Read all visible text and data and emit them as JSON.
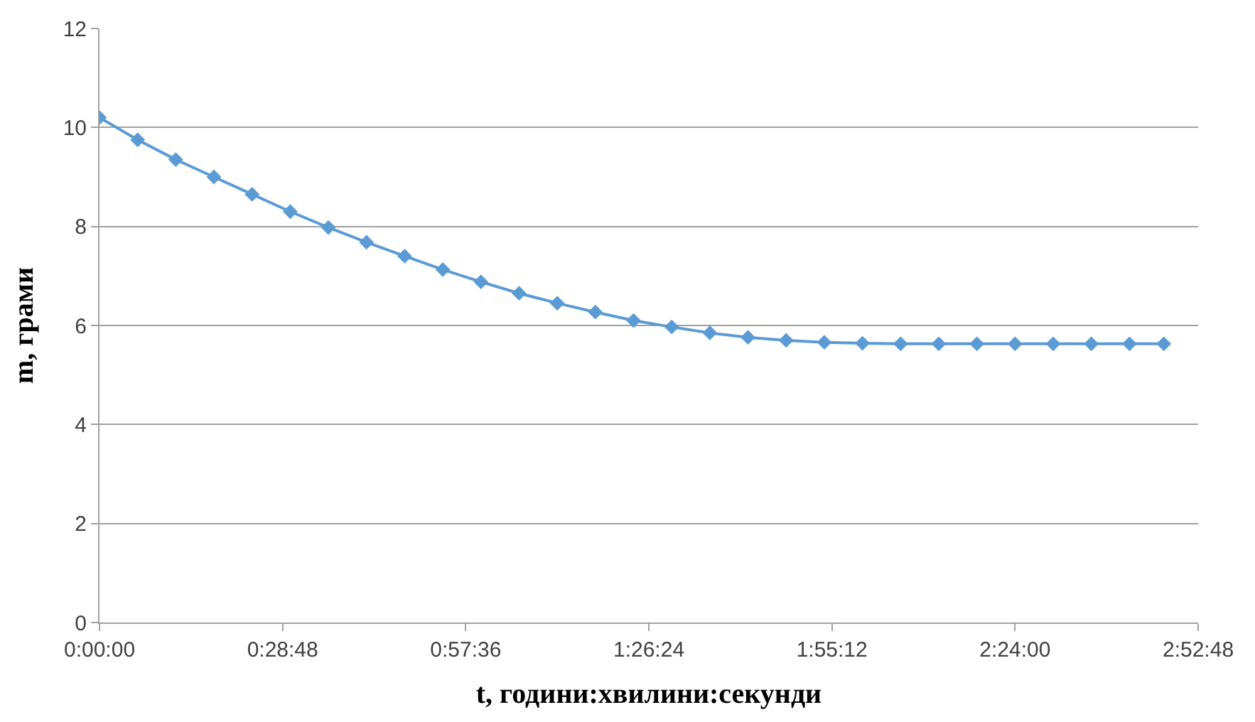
{
  "chart_data": {
    "type": "line",
    "xlabel": "t, години:хвилини:секунди",
    "ylabel": "m, грами",
    "x": [
      0,
      0.1,
      0.2,
      0.3,
      0.4,
      0.5,
      0.6,
      0.7,
      0.8,
      0.9,
      1.0,
      1.1,
      1.2,
      1.3,
      1.4,
      1.5,
      1.6,
      1.7,
      1.8,
      1.9,
      2.0,
      2.1,
      2.2,
      2.3,
      2.4,
      2.5,
      2.6,
      2.7,
      2.79
    ],
    "series": [
      {
        "color": "#5b9bd5",
        "values": [
          10.2,
          9.75,
          9.35,
          9.0,
          8.65,
          8.3,
          7.98,
          7.68,
          7.4,
          7.13,
          6.88,
          6.65,
          6.45,
          6.27,
          6.1,
          5.97,
          5.85,
          5.76,
          5.7,
          5.66,
          5.64,
          5.63,
          5.63,
          5.63,
          5.63,
          5.63,
          5.63,
          5.63,
          5.63
        ]
      }
    ],
    "xlim": [
      0,
      2.88
    ],
    "xticks": [
      {
        "value": 0,
        "label": "0:00:00"
      },
      {
        "value": 0.48,
        "label": "0:28:48"
      },
      {
        "value": 0.96,
        "label": "0:57:36"
      },
      {
        "value": 1.44,
        "label": "1:26:24"
      },
      {
        "value": 1.92,
        "label": "1:55:12"
      },
      {
        "value": 2.4,
        "label": "2:24:00"
      },
      {
        "value": 2.88,
        "label": "2:52:48"
      }
    ],
    "ylim": [
      0,
      12
    ],
    "yticks": [
      0,
      2,
      4,
      6,
      8,
      10,
      12
    ],
    "grid": "y",
    "marker": "diamond",
    "line_style": "solid"
  }
}
